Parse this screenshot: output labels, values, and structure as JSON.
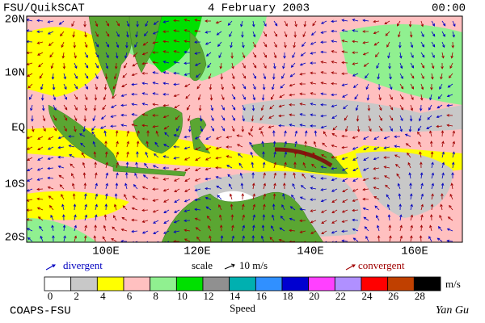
{
  "header": {
    "left": "FSU/QuikSCAT",
    "center": "4 February 2003",
    "right": "00:00"
  },
  "map": {
    "lat_labels": [
      "20N",
      "10N",
      "EQ",
      "10S",
      "20S"
    ],
    "lon_labels": [
      "100E",
      "120E",
      "140E",
      "160E"
    ]
  },
  "legend": {
    "divergent": "divergent",
    "scale": "scale",
    "scale_value": "10 m/s",
    "convergent": "convergent"
  },
  "colorbar": {
    "ticks": [
      0,
      2,
      4,
      6,
      8,
      10,
      12,
      14,
      16,
      18,
      20,
      22,
      24,
      26,
      28
    ],
    "colors": [
      "#ffffff",
      "#c8c8c8",
      "#ffff00",
      "#ffc0c0",
      "#90f090",
      "#00e000",
      "#909090",
      "#00b0b0",
      "#3090ff",
      "#0000d0",
      "#ff40ff",
      "#b090ff",
      "#ff0000",
      "#c04000",
      "#000000"
    ],
    "unit": "m/s",
    "label": "Speed"
  },
  "footer": {
    "left": "COAPS-FSU",
    "right": "Yan Gu"
  }
}
